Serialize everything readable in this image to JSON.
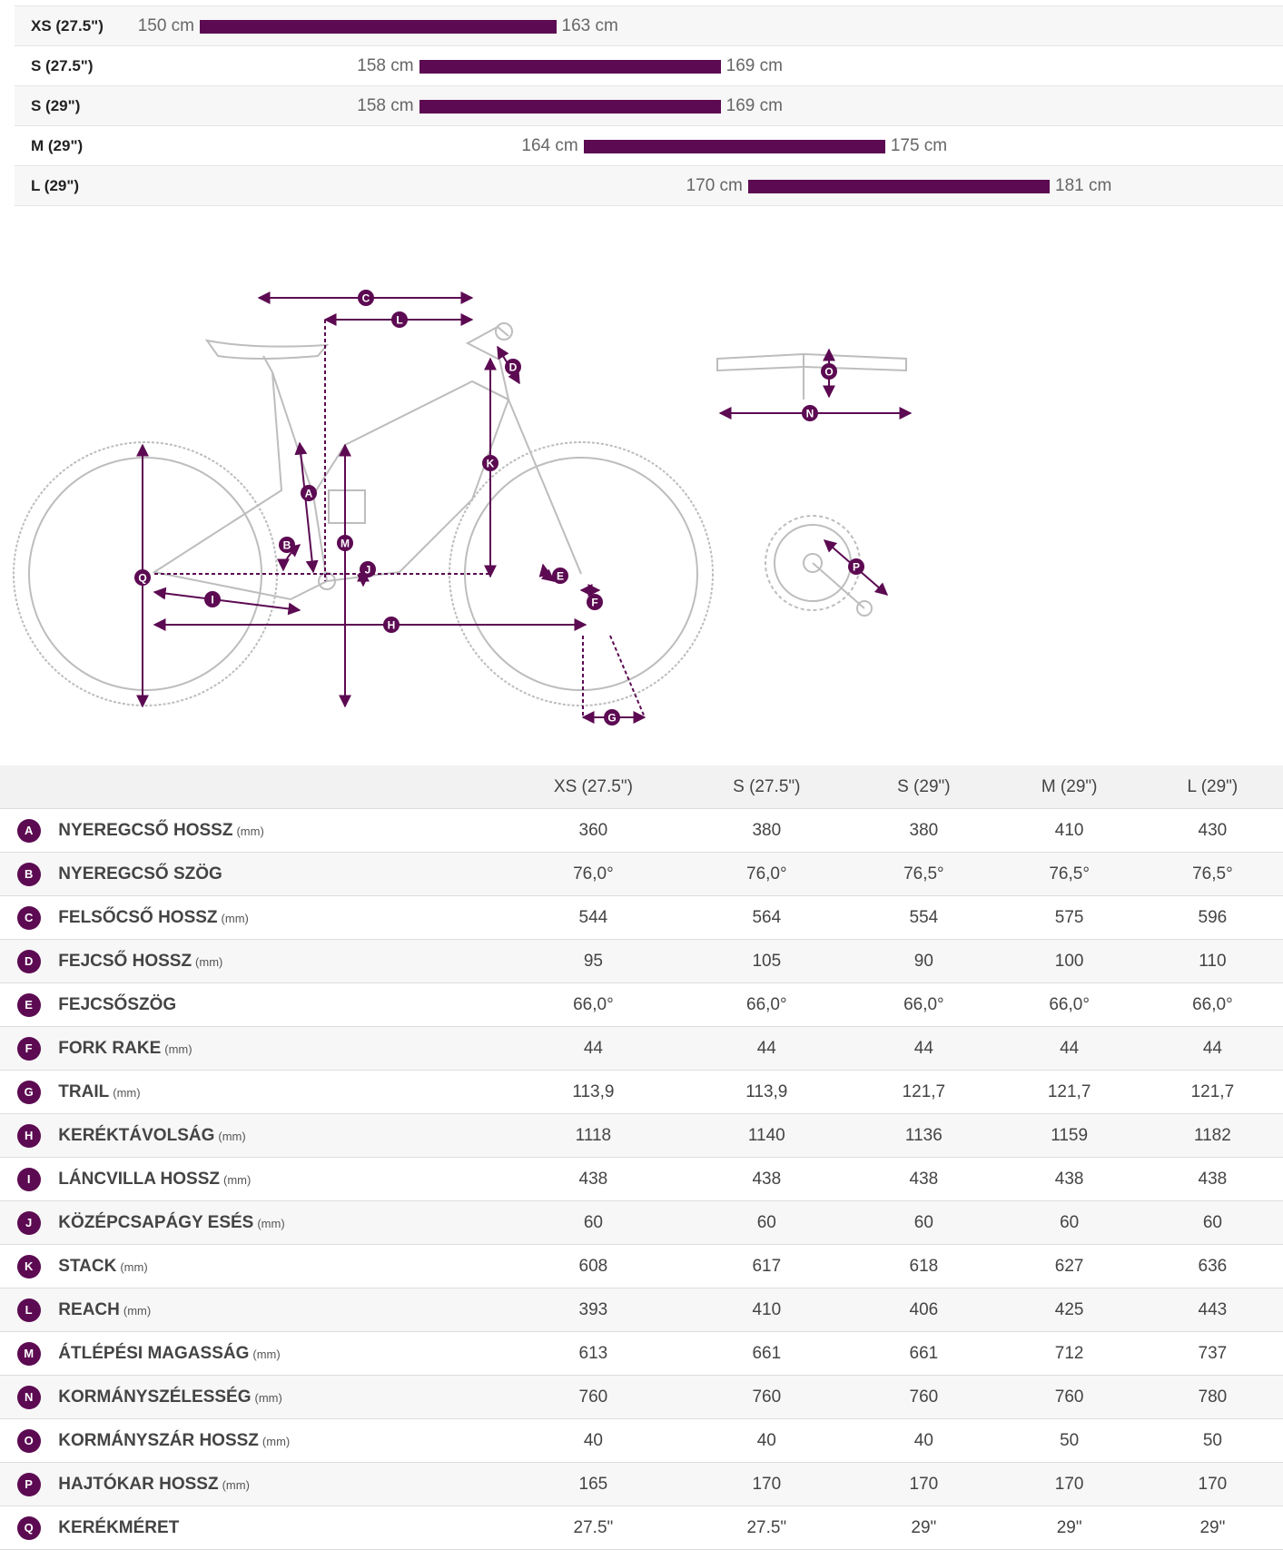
{
  "size_chart": {
    "rows": [
      {
        "label": "XS (27.5\")",
        "min": "150 cm",
        "max": "163 cm",
        "min_cm": 150,
        "max_cm": 163
      },
      {
        "label": "S (27.5\")",
        "min": "158 cm",
        "max": "169 cm",
        "min_cm": 158,
        "max_cm": 169
      },
      {
        "label": "S (29\")",
        "min": "158 cm",
        "max": "169 cm",
        "min_cm": 158,
        "max_cm": 169
      },
      {
        "label": "M (29\")",
        "min": "164 cm",
        "max": "175 cm",
        "min_cm": 164,
        "max_cm": 175
      },
      {
        "label": "L (29\")",
        "min": "170 cm",
        "max": "181 cm",
        "min_cm": 170,
        "max_cm": 181
      }
    ]
  },
  "diagram": {
    "letters": [
      "A",
      "B",
      "C",
      "D",
      "E",
      "F",
      "G",
      "H",
      "I",
      "J",
      "K",
      "L",
      "M",
      "N",
      "O",
      "P",
      "Q"
    ]
  },
  "geometry_table": {
    "columns": [
      "XS (27.5\")",
      "S (27.5\")",
      "S (29\")",
      "M (29\")",
      "L (29\")"
    ],
    "rows": [
      {
        "letter": "A",
        "name": "NYEREGCSŐ HOSSZ",
        "unit": "(mm)",
        "values": [
          "360",
          "380",
          "380",
          "410",
          "430"
        ]
      },
      {
        "letter": "B",
        "name": "NYEREGCSŐ SZÖG",
        "unit": "",
        "values": [
          "76,0°",
          "76,0°",
          "76,5°",
          "76,5°",
          "76,5°"
        ]
      },
      {
        "letter": "C",
        "name": "FELSŐCSŐ HOSSZ",
        "unit": "(mm)",
        "values": [
          "544",
          "564",
          "554",
          "575",
          "596"
        ]
      },
      {
        "letter": "D",
        "name": "FEJCSŐ HOSSZ",
        "unit": "(mm)",
        "values": [
          "95",
          "105",
          "90",
          "100",
          "110"
        ]
      },
      {
        "letter": "E",
        "name": "FEJCSŐSZÖG",
        "unit": "",
        "values": [
          "66,0°",
          "66,0°",
          "66,0°",
          "66,0°",
          "66,0°"
        ]
      },
      {
        "letter": "F",
        "name": "FORK RAKE",
        "unit": "(mm)",
        "values": [
          "44",
          "44",
          "44",
          "44",
          "44"
        ]
      },
      {
        "letter": "G",
        "name": "TRAIL",
        "unit": "(mm)",
        "values": [
          "113,9",
          "113,9",
          "121,7",
          "121,7",
          "121,7"
        ]
      },
      {
        "letter": "H",
        "name": "KERÉKTÁVOLSÁG",
        "unit": "(mm)",
        "values": [
          "1118",
          "1140",
          "1136",
          "1159",
          "1182"
        ]
      },
      {
        "letter": "I",
        "name": "LÁNCVILLA HOSSZ",
        "unit": "(mm)",
        "values": [
          "438",
          "438",
          "438",
          "438",
          "438"
        ]
      },
      {
        "letter": "J",
        "name": "KÖZÉPCSAPÁGY ESÉS",
        "unit": "(mm)",
        "values": [
          "60",
          "60",
          "60",
          "60",
          "60"
        ]
      },
      {
        "letter": "K",
        "name": "STACK",
        "unit": "(mm)",
        "values": [
          "608",
          "617",
          "618",
          "627",
          "636"
        ]
      },
      {
        "letter": "L",
        "name": "REACH",
        "unit": "(mm)",
        "values": [
          "393",
          "410",
          "406",
          "425",
          "443"
        ]
      },
      {
        "letter": "M",
        "name": "ÁTLÉPÉSI MAGASSÁG",
        "unit": "(mm)",
        "values": [
          "613",
          "661",
          "661",
          "712",
          "737"
        ]
      },
      {
        "letter": "N",
        "name": "KORMÁNYSZÉLESSÉG",
        "unit": "(mm)",
        "values": [
          "760",
          "760",
          "760",
          "760",
          "780"
        ]
      },
      {
        "letter": "O",
        "name": "KORMÁNYSZÁR HOSSZ",
        "unit": "(mm)",
        "values": [
          "40",
          "40",
          "40",
          "50",
          "50"
        ]
      },
      {
        "letter": "P",
        "name": "HAJTÓKAR HOSSZ",
        "unit": "(mm)",
        "values": [
          "165",
          "170",
          "170",
          "170",
          "170"
        ]
      },
      {
        "letter": "Q",
        "name": "KERÉKMÉRET",
        "unit": "",
        "values": [
          "27.5\"",
          "27.5\"",
          "29\"",
          "29\"",
          "29\""
        ]
      }
    ]
  },
  "colors": {
    "accent": "#5c0a52",
    "line": "#bdbdbd"
  }
}
